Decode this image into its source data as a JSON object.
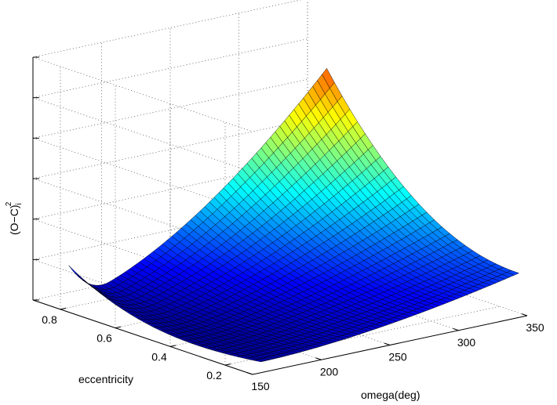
{
  "chart_data": {
    "type": "surface",
    "xlabel": "omega(deg)",
    "ylabel": "eccentricity",
    "zlabel": "(O−C)",
    "zlabel_sup": "2",
    "zlabel_sub": "i",
    "x_ticks": [
      150,
      200,
      250,
      300,
      350
    ],
    "y_ticks": [
      0.2,
      0.4,
      0.6,
      0.8
    ],
    "z_ticks_count": 6,
    "xlim": [
      150,
      350
    ],
    "ylim": [
      0.1,
      0.9
    ],
    "grid": true,
    "colormap": "jet"
  }
}
